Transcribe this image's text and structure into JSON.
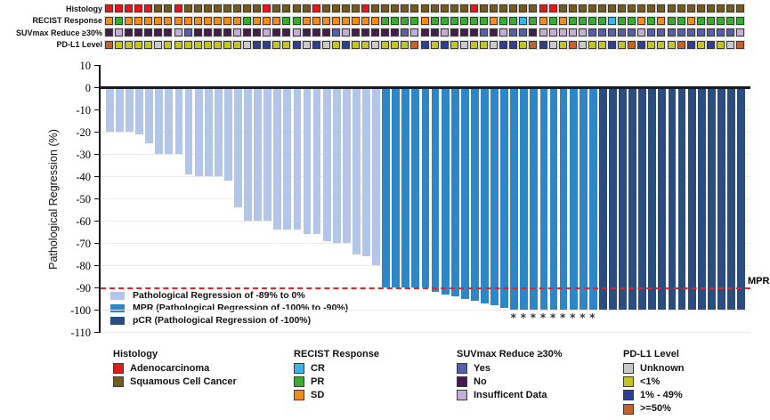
{
  "tracks": {
    "rows": [
      {
        "key": "histology",
        "label": "Histology"
      },
      {
        "key": "recist",
        "label": "RECIST Response"
      },
      {
        "key": "suvmax",
        "label": "SUVmax Reduce ≥30%"
      },
      {
        "key": "pdl1",
        "label": "PD-L1 Level"
      }
    ],
    "code_labels": {
      "histology": {
        "A": "Adenocarcinoma",
        "S": "Squamous Cell Cancer"
      },
      "recist": {
        "CR": "CR",
        "PR": "PR",
        "SD": "SD"
      },
      "suvmax": {
        "Y": "Yes",
        "N": "No",
        "I": "Insufficent Data"
      },
      "pdl1": {
        "U": "Unknown",
        "L": "<1%",
        "M": "1% - 49%",
        "H": ">=50%"
      }
    },
    "palette": {
      "histology": {
        "A": "#e3191c",
        "S": "#735a1e"
      },
      "recist": {
        "CR": "#3ab5e5",
        "PR": "#3aaa35",
        "SD": "#f08c1e"
      },
      "suvmax": {
        "Y": "#555fae",
        "N": "#471b4f",
        "I": "#c4addb"
      },
      "pdl1": {
        "U": "#c9c9c9",
        "L": "#c4c41e",
        "M": "#2d3e94",
        "H": "#c96127"
      }
    },
    "cells": {
      "histology": [
        "A",
        "A",
        "A",
        "A",
        "A",
        "S",
        "S",
        "A",
        "S",
        "S",
        "S",
        "S",
        "S",
        "S",
        "S",
        "S",
        "A",
        "S",
        "S",
        "S",
        "S",
        "A",
        "S",
        "S",
        "S",
        "S",
        "A",
        "S",
        "S",
        "S",
        "S",
        "S",
        "S",
        "S",
        "S",
        "S",
        "S",
        "A",
        "S",
        "S",
        "S",
        "S",
        "S",
        "S",
        "A",
        "A",
        "S",
        "S",
        "S",
        "S",
        "S",
        "S",
        "S",
        "S",
        "S",
        "S",
        "S",
        "S",
        "S",
        "S",
        "S",
        "S",
        "S",
        "S",
        "S"
      ],
      "recist": [
        "SD",
        "PR",
        "SD",
        "SD",
        "SD",
        "SD",
        "SD",
        "SD",
        "SD",
        "SD",
        "SD",
        "SD",
        "SD",
        "SD",
        "PR",
        "SD",
        "SD",
        "SD",
        "PR",
        "PR",
        "SD",
        "SD",
        "SD",
        "SD",
        "SD",
        "SD",
        "SD",
        "SD",
        "PR",
        "PR",
        "PR",
        "PR",
        "SD",
        "PR",
        "PR",
        "PR",
        "PR",
        "PR",
        "PR",
        "SD",
        "PR",
        "PR",
        "CR",
        "PR",
        "SD",
        "PR",
        "SD",
        "PR",
        "PR",
        "PR",
        "PR",
        "CR",
        "PR",
        "PR",
        "SD",
        "PR",
        "SD",
        "PR",
        "PR",
        "SD",
        "PR",
        "PR",
        "PR",
        "PR",
        "PR"
      ],
      "suvmax": [
        "N",
        "I",
        "N",
        "N",
        "N",
        "N",
        "N",
        "I",
        "Y",
        "N",
        "N",
        "N",
        "N",
        "I",
        "N",
        "N",
        "I",
        "N",
        "N",
        "I",
        "N",
        "N",
        "N",
        "Y",
        "I",
        "N",
        "N",
        "N",
        "N",
        "N",
        "Y",
        "I",
        "N",
        "N",
        "I",
        "N",
        "N",
        "N",
        "Y",
        "N",
        "I",
        "Y",
        "Y",
        "N",
        "I",
        "I",
        "I",
        "I",
        "I",
        "Y",
        "Y",
        "Y",
        "Y",
        "Y",
        "I",
        "Y",
        "Y",
        "Y",
        "Y",
        "Y",
        "Y",
        "Y",
        "Y",
        "Y",
        "I"
      ],
      "pdl1": [
        "H",
        "L",
        "L",
        "L",
        "L",
        "U",
        "L",
        "L",
        "L",
        "L",
        "L",
        "L",
        "L",
        "L",
        "U",
        "M",
        "M",
        "L",
        "L",
        "M",
        "U",
        "M",
        "U",
        "L",
        "M",
        "L",
        "L",
        "U",
        "L",
        "L",
        "L",
        "H",
        "M",
        "L",
        "M",
        "L",
        "U",
        "L",
        "L",
        "U",
        "M",
        "M",
        "L",
        "H",
        "M",
        "U",
        "L",
        "H",
        "U",
        "L",
        "L",
        "M",
        "L",
        "H",
        "M",
        "L",
        "L",
        "L",
        "H",
        "M",
        "L",
        "M",
        "L",
        "U",
        "H"
      ]
    }
  },
  "chart_data": {
    "type": "bar",
    "subtype": "waterfall",
    "ylabel": "Pathological Regression (%)",
    "ylim": [
      -110,
      10
    ],
    "yticks": [
      10,
      0,
      -10,
      -20,
      -30,
      -40,
      -50,
      -60,
      -70,
      -80,
      -90,
      -100,
      -110
    ],
    "grid": "horizontal-light",
    "values": [
      -20,
      -20,
      -20,
      -21,
      -25,
      -30,
      -30,
      -30,
      -39,
      -40,
      -40,
      -40,
      -42,
      -54,
      -60,
      -60,
      -60,
      -64,
      -64,
      -64,
      -66,
      -66,
      -69,
      -70,
      -70,
      -75,
      -76,
      -80,
      -90,
      -90,
      -90,
      -90,
      -90,
      -92,
      -93,
      -94,
      -95,
      -96,
      -97,
      -98,
      -99,
      -100,
      -100,
      -100,
      -100,
      -100,
      -100,
      -100,
      -100,
      -100,
      -100,
      -100,
      -100,
      -100,
      -100,
      -100,
      -100,
      -100,
      -100,
      -100,
      -100,
      -100,
      -100,
      -100,
      -100
    ],
    "bar_groups": [
      {
        "name": "partial",
        "label": "Pathological Regression of -89% to 0%",
        "color": "#b4c6e7",
        "start": 1,
        "end": 28
      },
      {
        "name": "mpr",
        "label": "MPR (Pathological Regression of -100% to -90%)",
        "color": "#2e86c6",
        "start": 29,
        "end": 50
      },
      {
        "name": "pcr",
        "label": "pCR (Pathological Regression of -100%)",
        "color": "#2b4d7d",
        "start": 51,
        "end": 65
      }
    ],
    "threshold_line": {
      "value": -90,
      "label": "MPR",
      "color": "#ec2024",
      "style": "dashed"
    },
    "asterisk_columns": [
      42,
      43,
      44,
      45,
      46,
      47,
      48,
      49,
      50
    ],
    "asterisk_symbol": "*"
  },
  "bottom_legends": [
    {
      "title": "Histology",
      "items": [
        {
          "label": "Adenocarcinoma",
          "color": "#e3191c"
        },
        {
          "label": "Squamous Cell Cancer",
          "color": "#735a1e"
        }
      ]
    },
    {
      "title": "RECIST Response",
      "items": [
        {
          "label": "CR",
          "color": "#3ab5e5"
        },
        {
          "label": "PR",
          "color": "#3aaa35"
        },
        {
          "label": "SD",
          "color": "#f08c1e"
        }
      ]
    },
    {
      "title": "SUVmax Reduce ≥30%",
      "items": [
        {
          "label": "Yes",
          "color": "#555fae"
        },
        {
          "label": "No",
          "color": "#471b4f"
        },
        {
          "label": "Insufficent Data",
          "color": "#c4addb"
        }
      ]
    },
    {
      "title": "PD-L1 Level",
      "items": [
        {
          "label": "Unknown",
          "color": "#c9c9c9"
        },
        {
          "label": "<1%",
          "color": "#c4c41e"
        },
        {
          "label": "1% - 49%",
          "color": "#2d3e94"
        },
        {
          "label": ">=50%",
          "color": "#c96127"
        }
      ]
    }
  ]
}
